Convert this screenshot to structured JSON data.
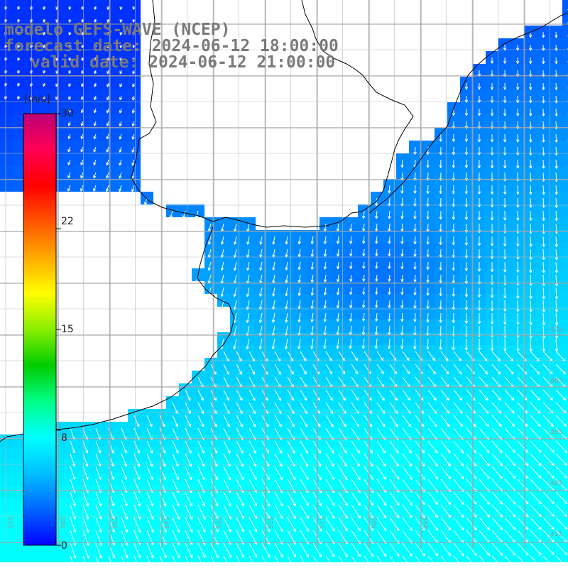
{
  "title": {
    "model": "modelo GEFS-WAVE (NCEP)",
    "forecast": "forecast date: 2024-06-12 18:00:00",
    "valid": "valid date: 2024-06-12 21:00:00"
  },
  "colorbar": {
    "unit": "[m/s]",
    "ticks": [
      "30",
      "22",
      "15",
      "8",
      "0"
    ],
    "tick_values": [
      30,
      22,
      15,
      8,
      0
    ],
    "range": [
      0,
      30
    ],
    "colors": [
      "#0000ff",
      "#0066ff",
      "#00bfff",
      "#00ffff",
      "#00ff88",
      "#00cc00",
      "#88ee00",
      "#ffff00",
      "#ffaa00",
      "#ff5500",
      "#ff0000",
      "#ff0055",
      "#bb0077"
    ]
  },
  "grid": {
    "lat_labels": [
      "375",
      "385",
      "395",
      "405",
      "415"
    ],
    "lon_labels": [
      "575",
      "565",
      "555",
      "545",
      "535",
      "525",
      "515",
      "505",
      "495"
    ]
  },
  "colors": {
    "land": "#ffffff",
    "coast": "#000000",
    "grid": "#999999",
    "title": "#7a7a7a",
    "arrow": "#ffffff"
  }
}
